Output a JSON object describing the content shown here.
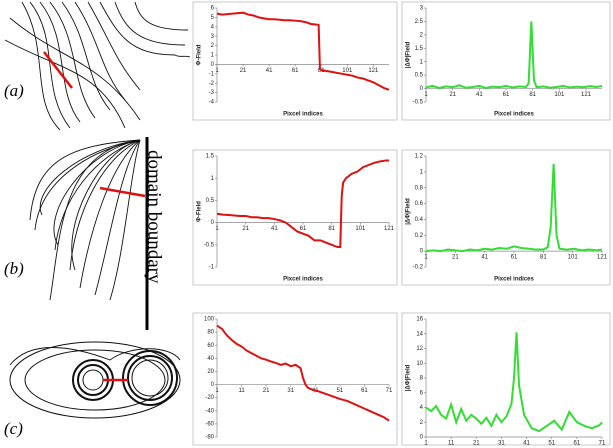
{
  "panel_labels": [
    "(a)",
    "(b)",
    "(c)"
  ],
  "annotation": "domain boundary",
  "chart_data": [
    {
      "type": "line",
      "xlabel": "Pixcel indices",
      "ylabel": "Φ-Field",
      "color": "#e01010",
      "xlim": [
        1,
        133
      ],
      "xticks": [
        1,
        21,
        41,
        61,
        81,
        101,
        121
      ],
      "ylim": [
        -4,
        6
      ],
      "yticks": [
        -4,
        -3,
        -2,
        -1,
        0,
        1,
        2,
        3,
        4,
        5,
        6
      ],
      "x": [
        1,
        5,
        9,
        13,
        17,
        21,
        25,
        29,
        33,
        37,
        41,
        45,
        49,
        53,
        57,
        61,
        65,
        69,
        73,
        77,
        79,
        80,
        81,
        85,
        89,
        93,
        97,
        101,
        105,
        109,
        113,
        117,
        121,
        125,
        129,
        133
      ],
      "values": [
        5.4,
        5.3,
        5.35,
        5.4,
        5.45,
        5.5,
        5.3,
        5.2,
        5.0,
        4.9,
        4.8,
        4.8,
        4.75,
        4.7,
        4.7,
        4.65,
        4.6,
        4.5,
        4.3,
        4.25,
        4.2,
        -0.5,
        -0.6,
        -0.7,
        -0.8,
        -0.9,
        -1.0,
        -1.1,
        -1.2,
        -1.4,
        -1.5,
        -1.7,
        -1.9,
        -2.2,
        -2.5,
        -2.7
      ]
    },
    {
      "type": "line",
      "xlabel": "Pixcel indices",
      "ylabel": "|ΔΦ|Field",
      "color": "#33dd33",
      "xlim": [
        1,
        133
      ],
      "xticks": [
        1,
        21,
        41,
        61,
        81,
        101,
        121
      ],
      "ylim": [
        -0.5,
        3
      ],
      "yticks": [
        -0.5,
        0,
        0.5,
        1,
        1.5,
        2,
        2.5,
        3
      ],
      "x": [
        1,
        6,
        11,
        16,
        21,
        26,
        31,
        36,
        41,
        46,
        51,
        56,
        61,
        66,
        71,
        76,
        78,
        80,
        82,
        84,
        89,
        94,
        99,
        104,
        109,
        114,
        119,
        124,
        129,
        133
      ],
      "values": [
        0.05,
        0.1,
        0.02,
        0.08,
        0.05,
        0.12,
        0.03,
        0.06,
        0.1,
        0.02,
        0.07,
        0.05,
        0.1,
        0.04,
        0.08,
        0.06,
        0.2,
        2.5,
        0.3,
        0.05,
        0.08,
        0.03,
        0.06,
        0.1,
        0.04,
        0.07,
        0.05,
        0.09,
        0.06,
        0.1
      ]
    },
    {
      "type": "line",
      "xlabel": "Pixcel indices",
      "ylabel": "Φ-Field",
      "color": "#e01010",
      "xlim": [
        1,
        121
      ],
      "xticks": [
        1,
        21,
        41,
        61,
        81,
        101,
        121
      ],
      "ylim": [
        -1,
        1.5
      ],
      "yticks": [
        -1,
        -0.5,
        0,
        0.5,
        1,
        1.5
      ],
      "x": [
        1,
        5,
        9,
        13,
        17,
        21,
        25,
        29,
        33,
        37,
        41,
        45,
        49,
        53,
        57,
        61,
        65,
        69,
        73,
        77,
        81,
        85,
        87,
        88,
        89,
        91,
        95,
        99,
        103,
        107,
        111,
        115,
        119,
        121
      ],
      "values": [
        0.2,
        0.18,
        0.17,
        0.16,
        0.15,
        0.15,
        0.12,
        0.12,
        0.1,
        0.1,
        0.08,
        0.05,
        0.0,
        -0.1,
        -0.2,
        -0.25,
        -0.3,
        -0.4,
        -0.4,
        -0.45,
        -0.5,
        -0.55,
        -0.55,
        0.6,
        0.9,
        1.0,
        1.1,
        1.15,
        1.25,
        1.3,
        1.35,
        1.38,
        1.4,
        1.4
      ]
    },
    {
      "type": "line",
      "xlabel": "Pixcel indices",
      "ylabel": "|ΔΦ|Field",
      "color": "#33dd33",
      "xlim": [
        1,
        121
      ],
      "xticks": [
        1,
        21,
        41,
        61,
        81,
        101,
        121
      ],
      "ylim": [
        -0.2,
        1.2
      ],
      "yticks": [
        -0.2,
        0,
        0.2,
        0.4,
        0.6,
        0.8,
        1,
        1.2
      ],
      "x": [
        1,
        6,
        11,
        16,
        21,
        26,
        31,
        36,
        41,
        46,
        51,
        56,
        61,
        66,
        71,
        76,
        81,
        84,
        86,
        88,
        90,
        92,
        97,
        102,
        107,
        112,
        117,
        121
      ],
      "values": [
        0.0,
        0.01,
        0.0,
        0.02,
        0.01,
        0.0,
        0.02,
        0.01,
        0.03,
        0.02,
        0.04,
        0.03,
        0.06,
        0.04,
        0.03,
        0.02,
        0.02,
        0.05,
        0.3,
        1.1,
        0.2,
        0.03,
        0.02,
        0.03,
        0.01,
        0.02,
        0.01,
        0.02
      ]
    },
    {
      "type": "line",
      "color": "#e01010",
      "xlim": [
        1,
        71
      ],
      "xticks": [
        1,
        11,
        21,
        31,
        41,
        51,
        61,
        71
      ],
      "ylim": [
        -80,
        100
      ],
      "yticks": [
        -80,
        -60,
        -40,
        -20,
        0,
        20,
        40,
        60,
        80,
        100
      ],
      "x": [
        1,
        3,
        5,
        7,
        9,
        11,
        13,
        15,
        17,
        19,
        21,
        23,
        25,
        27,
        29,
        31,
        33,
        35,
        36,
        37,
        38,
        40,
        42,
        45,
        48,
        51,
        54,
        57,
        60,
        63,
        66,
        69,
        71
      ],
      "values": [
        90,
        85,
        75,
        68,
        62,
        58,
        52,
        48,
        44,
        40,
        38,
        35,
        33,
        30,
        32,
        28,
        30,
        25,
        10,
        0,
        -5,
        -8,
        -10,
        -14,
        -18,
        -22,
        -25,
        -30,
        -35,
        -40,
        -45,
        -50,
        -55
      ]
    },
    {
      "type": "line",
      "ylabel": "|ΔΦ|Field",
      "color": "#33dd33",
      "xlim": [
        1,
        71
      ],
      "xticks": [
        1,
        11,
        21,
        31,
        41,
        51,
        61,
        71
      ],
      "ylim": [
        0,
        16
      ],
      "yticks": [
        0,
        2,
        4,
        6,
        8,
        10,
        12,
        14,
        16
      ],
      "x": [
        1,
        3,
        5,
        7,
        9,
        11,
        13,
        15,
        17,
        19,
        21,
        23,
        25,
        27,
        29,
        31,
        33,
        35,
        36,
        37,
        38,
        40,
        43,
        46,
        49,
        52,
        55,
        58,
        61,
        64,
        67,
        70,
        71
      ],
      "values": [
        4,
        3.5,
        4.2,
        3,
        2.5,
        4.4,
        2,
        3.8,
        2.2,
        3,
        2.5,
        1.8,
        2.6,
        1.5,
        3,
        2,
        2.8,
        4.5,
        8,
        14.2,
        7,
        3,
        1.2,
        0.8,
        1.5,
        2.2,
        1,
        3.4,
        2,
        1.5,
        1.2,
        1.6,
        2
      ]
    }
  ]
}
